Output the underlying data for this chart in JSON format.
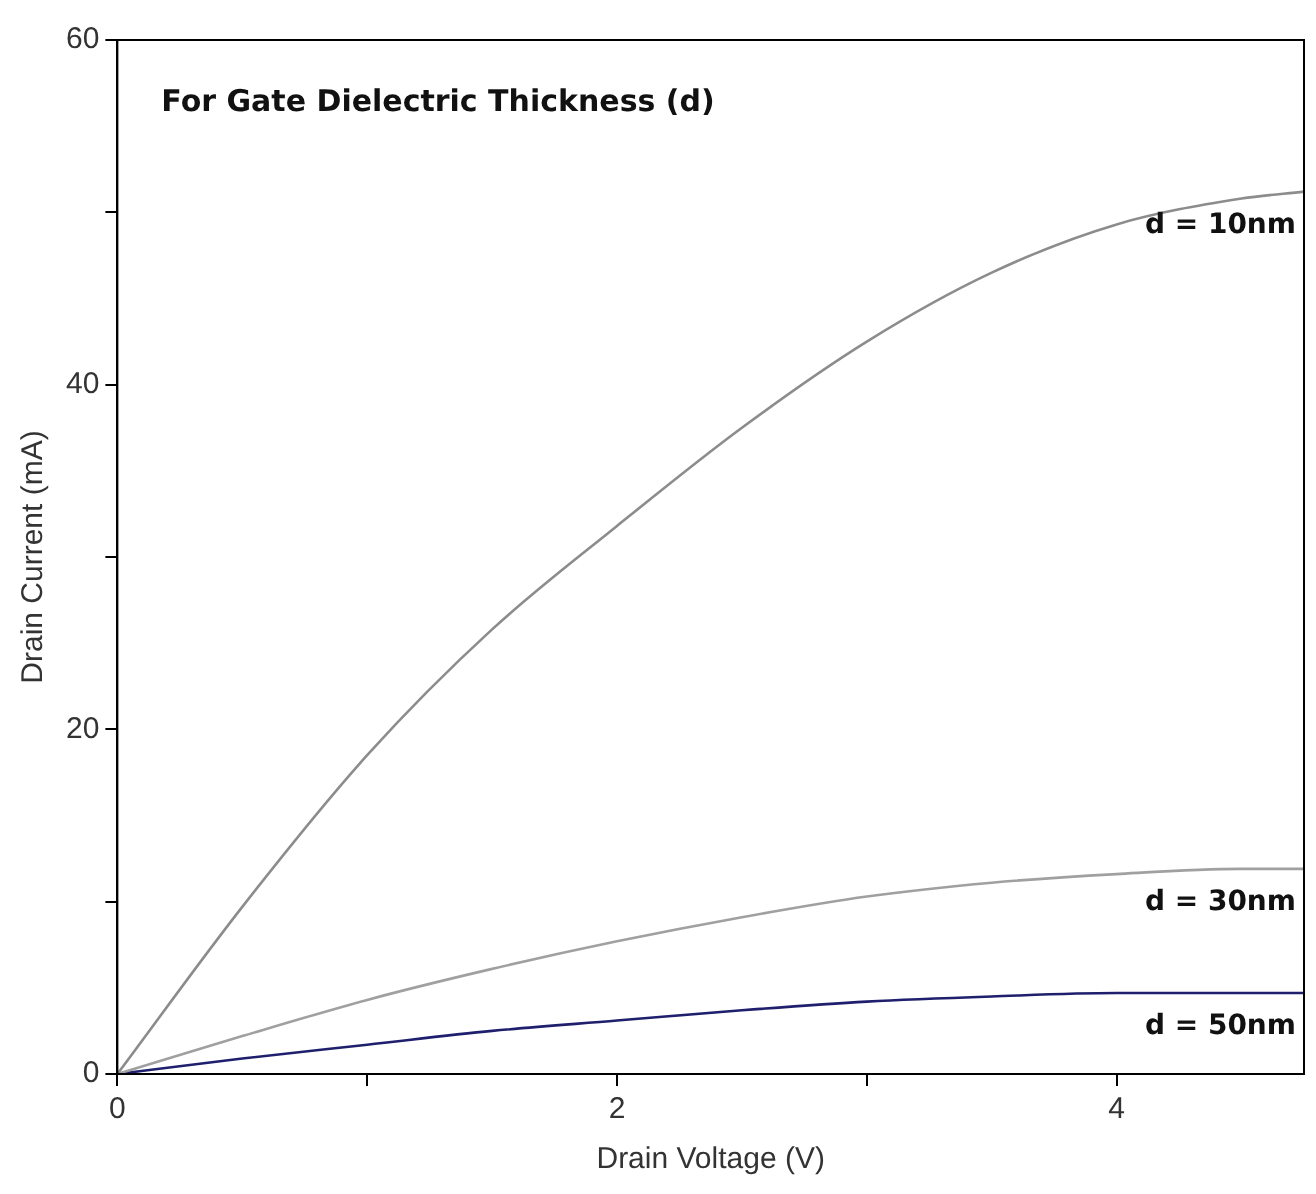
{
  "chart_data": {
    "type": "line",
    "title": "For Gate Dielectric Thickness (d)",
    "xlabel": "Drain Voltage (V)",
    "ylabel": "Drain Current (mA)",
    "x": [
      0,
      0.5,
      1,
      1.5,
      2,
      2.5,
      3,
      3.5,
      4,
      4.5,
      4.75
    ],
    "series": [
      {
        "name": "d = 10nm",
        "color": "#8c8c8c",
        "values": [
          0,
          9.7,
          18.5,
          25.8,
          31.8,
          37.5,
          42.5,
          46.5,
          49.3,
          50.8,
          51.2
        ]
      },
      {
        "name": "d = 30nm",
        "color": "#a0a0a0",
        "values": [
          0,
          2.2,
          4.3,
          6.1,
          7.7,
          9.1,
          10.3,
          11.1,
          11.6,
          11.9,
          11.9
        ]
      },
      {
        "name": "d = 50nm",
        "color": "#1f1f6e",
        "values": [
          0,
          0.9,
          1.7,
          2.5,
          3.1,
          3.7,
          4.2,
          4.5,
          4.7,
          4.7,
          4.7
        ]
      }
    ],
    "xlim": [
      0,
      4.75
    ],
    "xticks": [
      0,
      {
        "value": 1,
        "label": null
      },
      2,
      {
        "value": 3,
        "label": null
      },
      4
    ],
    "ylim": [
      0,
      60
    ],
    "yticks": [
      0,
      {
        "value": 10,
        "label": null
      },
      20,
      {
        "value": 30,
        "label": null
      },
      40,
      {
        "value": 50,
        "label": null
      },
      60
    ],
    "grid": false,
    "legend": false,
    "marker": "none",
    "line_style": "solid"
  }
}
